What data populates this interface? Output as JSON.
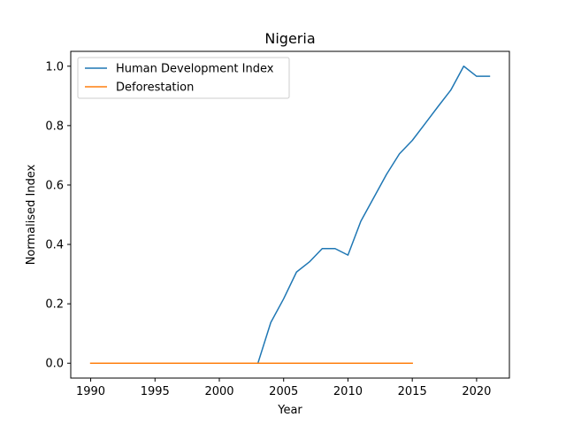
{
  "chart_data": {
    "type": "line",
    "title": "Nigeria",
    "xlabel": "Year",
    "ylabel": "Normalised Index",
    "xlim": [
      1988.45,
      2022.55
    ],
    "ylim": [
      -0.05,
      1.05
    ],
    "xticks": [
      1990,
      1995,
      2000,
      2005,
      2010,
      2015,
      2020
    ],
    "yticks": [
      0.0,
      0.2,
      0.4,
      0.6,
      0.8,
      1.0
    ],
    "ytick_labels": [
      "0.0",
      "0.2",
      "0.4",
      "0.6",
      "0.8",
      "1.0"
    ],
    "grid": false,
    "legend_position": "upper-left",
    "series": [
      {
        "name": "Human Development Index",
        "color": "#1f77b4",
        "x": [
          2003,
          2004,
          2005,
          2006,
          2007,
          2008,
          2009,
          2010,
          2011,
          2012,
          2013,
          2014,
          2015,
          2016,
          2017,
          2018,
          2019,
          2020,
          2021
        ],
        "y": [
          0.0,
          0.137,
          0.217,
          0.307,
          0.341,
          0.386,
          0.386,
          0.364,
          0.478,
          0.557,
          0.636,
          0.705,
          0.75,
          0.807,
          0.864,
          0.92,
          1.0,
          0.966,
          0.966
        ]
      },
      {
        "name": "Deforestation",
        "color": "#ff7f0e",
        "x": [
          1990,
          1991,
          1992,
          1993,
          1994,
          1995,
          1996,
          1997,
          1998,
          1999,
          2000,
          2001,
          2002,
          2003,
          2004,
          2005,
          2006,
          2007,
          2008,
          2009,
          2010,
          2011,
          2012,
          2013,
          2014,
          2015
        ],
        "y": [
          0,
          0,
          0,
          0,
          0,
          0,
          0,
          0,
          0,
          0,
          0,
          0,
          0,
          0,
          0,
          0,
          0,
          0,
          0,
          0,
          0,
          0,
          0,
          0,
          0,
          0
        ]
      }
    ]
  }
}
